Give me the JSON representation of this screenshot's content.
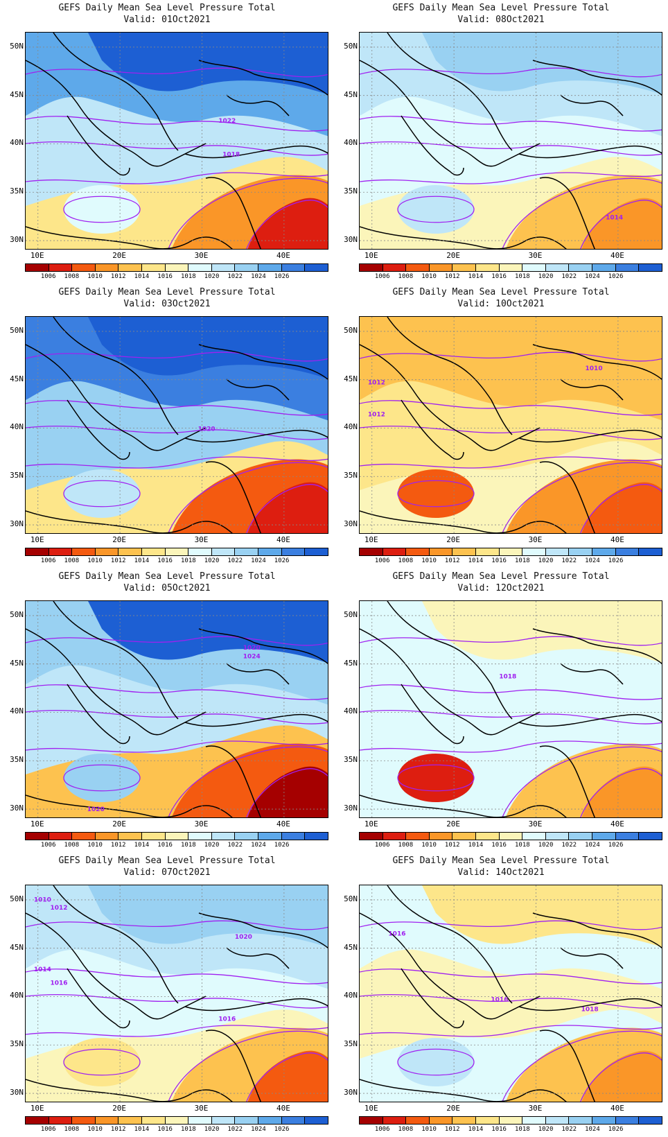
{
  "title": "GEFS Daily Mean Sea Level Pressure Total",
  "colorbar": {
    "labels": [
      "1006",
      "1008",
      "1010",
      "1012",
      "1014",
      "1016",
      "1018",
      "1020",
      "1022",
      "1024",
      "1026"
    ],
    "colors": [
      "#a50000",
      "#dd1e10",
      "#f45a10",
      "#fa9628",
      "#fdc24f",
      "#fde68a",
      "#fbf5ba",
      "#e0fbfd",
      "#bfe6f8",
      "#99d1f2",
      "#5ea9ea",
      "#3b7fe0",
      "#1d5fd3"
    ]
  },
  "axes": {
    "lat_labels": [
      "50N",
      "45N",
      "40N",
      "35N",
      "30N"
    ],
    "lon_labels": [
      "10E",
      "20E",
      "30E",
      "40E"
    ]
  },
  "panels": [
    {
      "valid": "Valid: 01Oct2021",
      "contour_labels": [
        "1022",
        "1018"
      ],
      "regions": {
        "base": "#bfe6f8",
        "north": "#1d5fd3",
        "band": "#5ea9ea",
        "south": "#fde68a",
        "southeast": "#fa9628",
        "corner": "#dd1e10",
        "blob": "#e0fbfd"
      }
    },
    {
      "valid": "Valid: 08Oct2021",
      "contour_labels": [
        "1014"
      ],
      "regions": {
        "base": "#e0fbfd",
        "north": "#99d1f2",
        "band": "#bfe6f8",
        "south": "#fbf5ba",
        "southeast": "#fdc24f",
        "corner": "#fa9628",
        "blob": "#bfe6f8"
      }
    },
    {
      "valid": "Valid: 03Oct2021",
      "contour_labels": [
        "1020"
      ],
      "regions": {
        "base": "#99d1f2",
        "north": "#1d5fd3",
        "band": "#3b7fe0",
        "south": "#fde68a",
        "southeast": "#f45a10",
        "corner": "#dd1e10",
        "blob": "#bfe6f8"
      }
    },
    {
      "valid": "Valid: 10Oct2021",
      "contour_labels": [
        "1010",
        "1012",
        "1012"
      ],
      "regions": {
        "base": "#fde68a",
        "north": "#fdc24f",
        "band": "#fdc24f",
        "south": "#fbf5ba",
        "southeast": "#fa9628",
        "corner": "#f45a10",
        "blob": "#f45a10"
      }
    },
    {
      "valid": "Valid: 05Oct2021",
      "contour_labels": [
        "1020",
        "1024",
        "1020"
      ],
      "regions": {
        "base": "#bfe6f8",
        "north": "#1d5fd3",
        "band": "#99d1f2",
        "south": "#fdc24f",
        "southeast": "#f45a10",
        "corner": "#a50000",
        "blob": "#99d1f2"
      }
    },
    {
      "valid": "Valid: 12Oct2021",
      "contour_labels": [
        "1018"
      ],
      "regions": {
        "base": "#e0fbfd",
        "north": "#fbf5ba",
        "band": "#e0fbfd",
        "south": "#e0fbfd",
        "southeast": "#fdc24f",
        "corner": "#fa9628",
        "blob": "#dd1e10"
      }
    },
    {
      "valid": "Valid: 07Oct2021",
      "contour_labels": [
        "1010",
        "1012",
        "1014",
        "1016",
        "1020",
        "1016"
      ],
      "regions": {
        "base": "#e0fbfd",
        "north": "#99d1f2",
        "band": "#bfe6f8",
        "south": "#fbf5ba",
        "southeast": "#fdc24f",
        "corner": "#f45a10",
        "blob": "#fde68a"
      }
    },
    {
      "valid": "Valid: 14Oct2021",
      "contour_labels": [
        "1016",
        "1016",
        "1018"
      ],
      "regions": {
        "base": "#fbf5ba",
        "north": "#fde68a",
        "band": "#e0fbfd",
        "south": "#e0fbfd",
        "southeast": "#fdc24f",
        "corner": "#fa9628",
        "blob": "#bfe6f8"
      }
    }
  ]
}
